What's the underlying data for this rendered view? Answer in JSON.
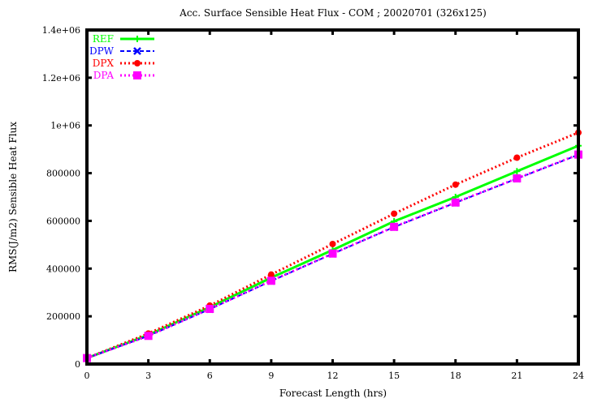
{
  "chart_data": {
    "type": "line",
    "title": "Acc. Surface Sensible Heat Flux - COM ; 20020701 (326x125)",
    "xlabel": "Forecast Length (hrs)",
    "ylabel": "RMS(J/m2) Sensible Heat Flux",
    "x": [
      0,
      3,
      6,
      9,
      12,
      15,
      18,
      21,
      24
    ],
    "xlim": [
      0,
      24
    ],
    "ylim": [
      0,
      1400000
    ],
    "x_ticks": [
      "0",
      "3",
      "6",
      "9",
      "12",
      "15",
      "18",
      "21",
      "24"
    ],
    "y_ticks": [
      "0",
      "200000",
      "400000",
      "600000",
      "800000",
      "1e+06",
      "1.2e+06",
      "1.4e+06"
    ],
    "y_tick_values": [
      0,
      200000,
      400000,
      600000,
      800000,
      1000000,
      1200000,
      1400000
    ],
    "grid": false,
    "legend_position": "top-left inside",
    "series": [
      {
        "name": "REF",
        "color": "#00ff00",
        "dash": "solid",
        "marker": "plus",
        "values": [
          25000,
          122000,
          238000,
          362000,
          478000,
          598000,
          700000,
          808000,
          915000
        ]
      },
      {
        "name": "DPW",
        "color": "#0000ff",
        "dash": "dashed",
        "marker": "cross",
        "values": [
          25000,
          118000,
          230000,
          348000,
          462000,
          574000,
          676000,
          777000,
          877000
        ]
      },
      {
        "name": "DPX",
        "color": "#ff0000",
        "dash": "dotted",
        "marker": "filled-circle",
        "values": [
          25000,
          128000,
          245000,
          375000,
          503000,
          630000,
          752000,
          865000,
          970000
        ]
      },
      {
        "name": "DPA",
        "color": "#ff00ff",
        "dash": "dotted",
        "marker": "filled-square",
        "values": [
          25000,
          118000,
          231000,
          349000,
          463000,
          575000,
          677000,
          778000,
          878000
        ]
      }
    ]
  }
}
